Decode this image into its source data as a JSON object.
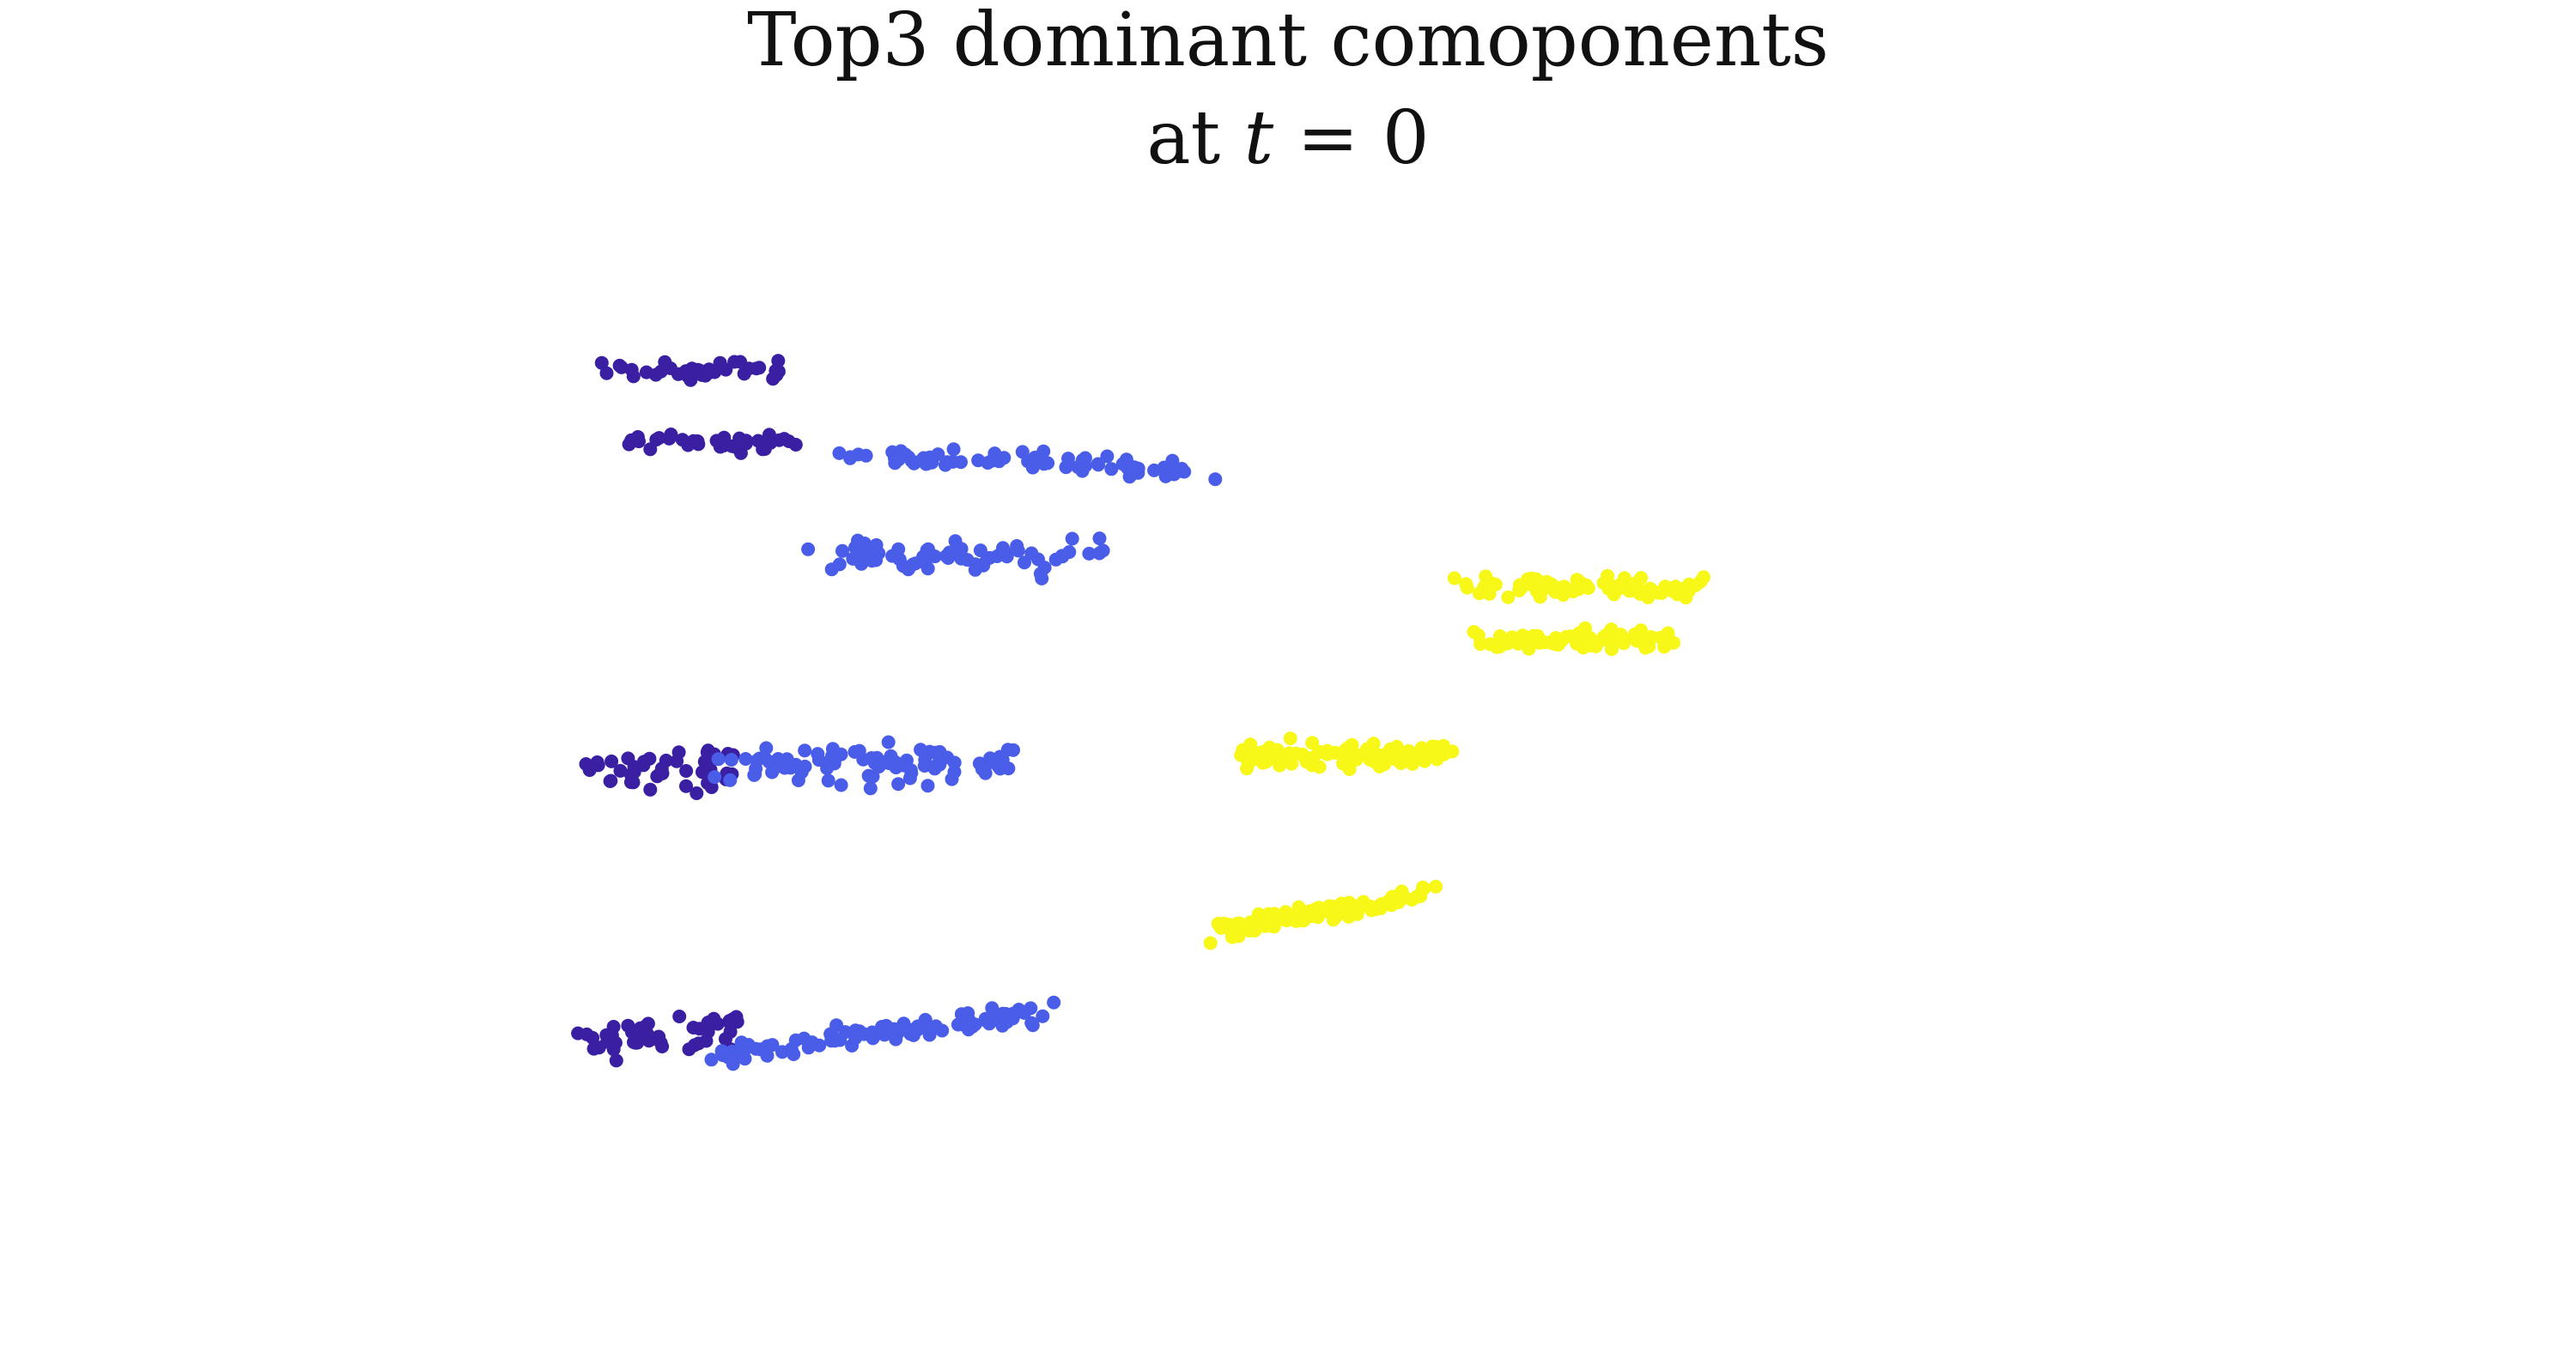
{
  "chart_data": {
    "type": "scatter",
    "title_line1": "Top3 dominant comoponents",
    "title_line2_prefix": "at ",
    "title_line2_var": "t",
    "title_line2_suffix": " = 0",
    "axes_visible": false,
    "grid": false,
    "xlim": [
      0,
      100
    ],
    "ylim": [
      0,
      100
    ],
    "colors": [
      "#3b1fa3",
      "#4a5de8",
      "#f7f718"
    ],
    "clusters": [
      {
        "color_index": 0,
        "cx": 10.5,
        "cy": 86.5,
        "sx": 6.5,
        "sy": 1.1,
        "slope": 0.0,
        "n": 38,
        "seed": 11
      },
      {
        "color_index": 0,
        "cx": 11.0,
        "cy": 79.0,
        "sx": 6.0,
        "sy": 1.0,
        "slope": 0.0,
        "n": 36,
        "seed": 12
      },
      {
        "color_index": 1,
        "cx": 28.0,
        "cy": 77.0,
        "sx": 12.5,
        "sy": 1.0,
        "slope": -0.08,
        "n": 70,
        "seed": 21
      },
      {
        "color_index": 1,
        "cx": 25.0,
        "cy": 67.0,
        "sx": 10.5,
        "sy": 1.6,
        "slope": -0.03,
        "n": 75,
        "seed": 22
      },
      {
        "color_index": 2,
        "cx": 59.0,
        "cy": 64.0,
        "sx": 8.5,
        "sy": 1.0,
        "slope": -0.05,
        "n": 80,
        "seed": 31
      },
      {
        "color_index": 2,
        "cx": 59.0,
        "cy": 58.5,
        "sx": 7.0,
        "sy": 0.9,
        "slope": 0.0,
        "n": 75,
        "seed": 32
      },
      {
        "color_index": 0,
        "cx": 8.0,
        "cy": 45.0,
        "sx": 5.5,
        "sy": 2.3,
        "slope": 0.0,
        "n": 45,
        "seed": 13
      },
      {
        "color_index": 1,
        "cx": 20.0,
        "cy": 45.5,
        "sx": 10.5,
        "sy": 2.2,
        "slope": 0.0,
        "n": 90,
        "seed": 23
      },
      {
        "color_index": 2,
        "cx": 46.0,
        "cy": 46.5,
        "sx": 7.5,
        "sy": 1.4,
        "slope": 0.0,
        "n": 100,
        "seed": 33
      },
      {
        "color_index": 0,
        "cx": 8.0,
        "cy": 17.5,
        "sx": 5.5,
        "sy": 2.5,
        "slope": 0.05,
        "n": 48,
        "seed": 14
      },
      {
        "color_index": 1,
        "cx": 20.0,
        "cy": 17.5,
        "sx": 11.5,
        "sy": 1.2,
        "slope": 0.26,
        "n": 95,
        "seed": 24
      },
      {
        "color_index": 2,
        "cx": 44.5,
        "cy": 30.0,
        "sx": 7.5,
        "sy": 1.0,
        "slope": 0.33,
        "n": 95,
        "seed": 34
      }
    ]
  }
}
